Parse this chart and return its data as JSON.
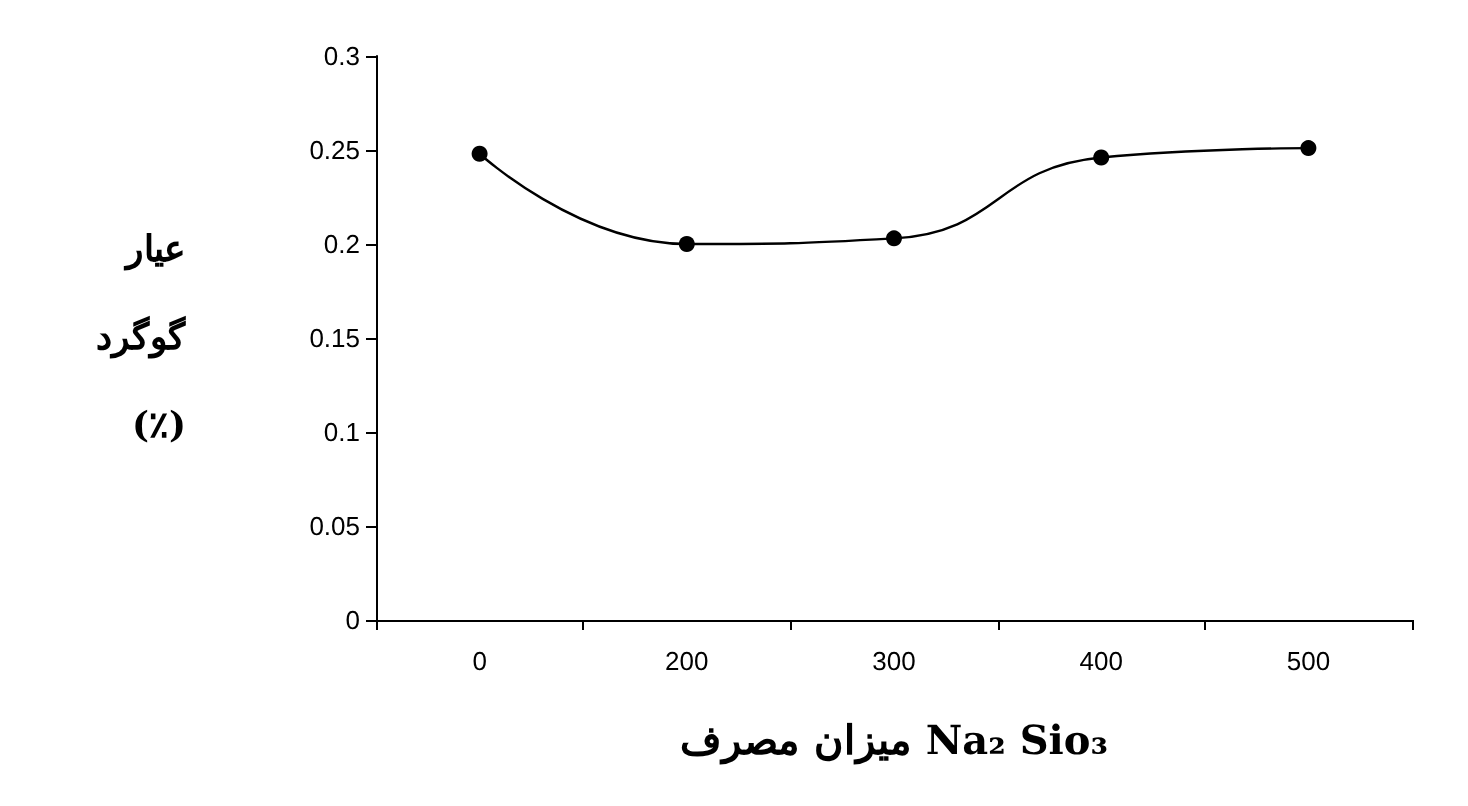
{
  "chart_data": {
    "type": "line",
    "categories": [
      "0",
      "200",
      "300",
      "400",
      "500"
    ],
    "values": [
      0.248,
      0.2,
      0.203,
      0.246,
      0.251
    ],
    "color": "#000000",
    "ylim": [
      0,
      0.3
    ],
    "yticks": [
      0,
      0.05,
      0.1,
      0.15,
      0.2,
      0.25,
      0.3
    ],
    "xlabel": "میزان مصرف Na₂ Sio₃",
    "ylabel": "عیار\nگوگرد\n(٪)",
    "marker": "circle",
    "line_style": "solid",
    "grid": false
  }
}
